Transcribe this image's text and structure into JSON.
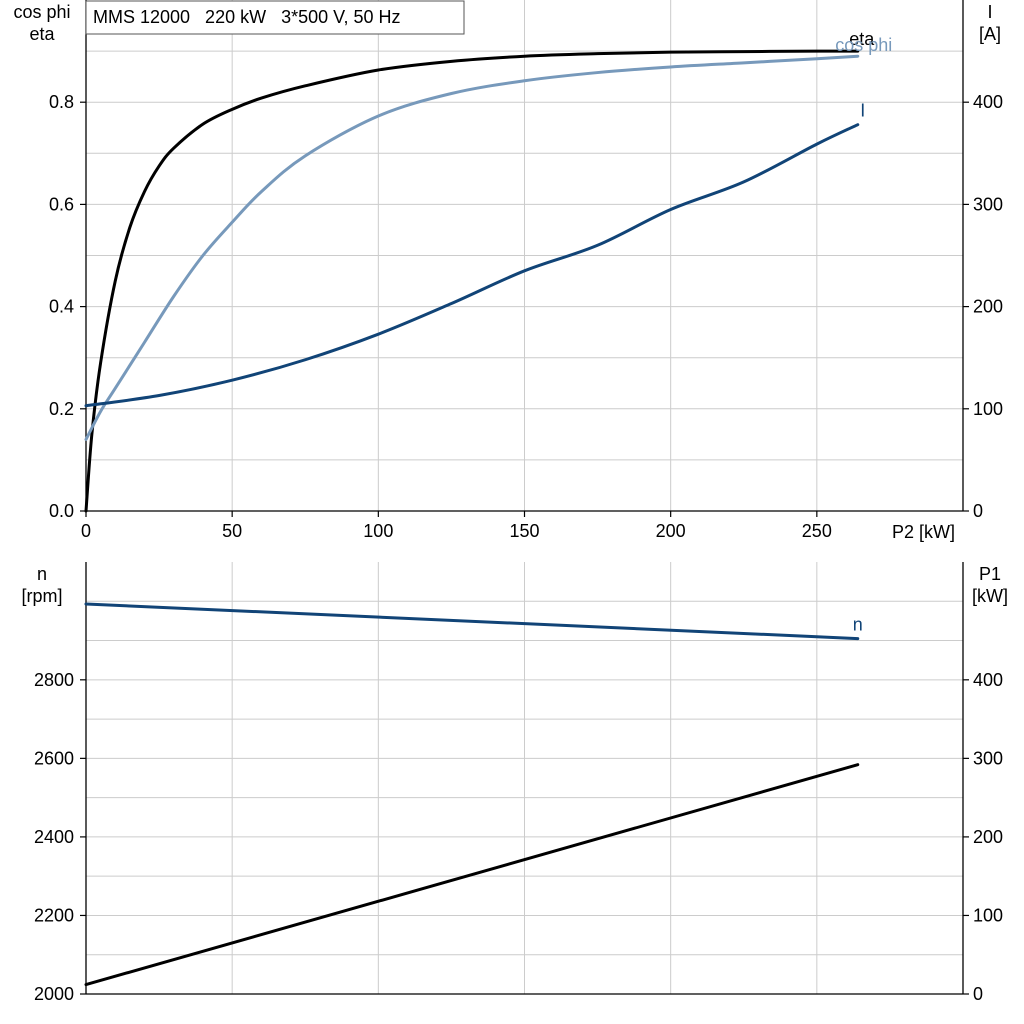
{
  "title": "MMS 12000   220 kW   3*500 V, 50 Hz",
  "colors": {
    "black": "#000000",
    "light_blue": "#7799bb",
    "dark_blue": "#114477",
    "grid": "#cccccc"
  },
  "chart_data": [
    {
      "type": "line",
      "xlabel": "P2 [kW]",
      "xlim": [
        0,
        300
      ],
      "xticks": [
        "0",
        "50",
        "100",
        "150",
        "200",
        "250"
      ],
      "ylabel_left": [
        "cos phi",
        "eta"
      ],
      "ylim_left": [
        0,
        1.0
      ],
      "yticks_left": [
        "0.0",
        "0.2",
        "0.4",
        "0.6",
        "0.8"
      ],
      "ylabel_right": [
        "I",
        "[A]"
      ],
      "ylim_right": [
        0,
        500
      ],
      "yticks_right": [
        "0",
        "100",
        "200",
        "300",
        "400"
      ],
      "grid": true,
      "series": [
        {
          "name": "eta",
          "axis": "left",
          "color": "#000000",
          "x": [
            0,
            2,
            5,
            10,
            15,
            20,
            25,
            30,
            40,
            50,
            60,
            75,
            100,
            125,
            150,
            175,
            200,
            225,
            250,
            264
          ],
          "y": [
            0.0,
            0.15,
            0.29,
            0.45,
            0.555,
            0.625,
            0.675,
            0.71,
            0.757,
            0.786,
            0.808,
            0.832,
            0.863,
            0.88,
            0.89,
            0.895,
            0.898,
            0.899,
            0.9,
            0.9
          ]
        },
        {
          "name": "cos phi",
          "axis": "left",
          "color": "#7799bb",
          "x": [
            0,
            5,
            10,
            20,
            30,
            40,
            50,
            60,
            75,
            100,
            125,
            150,
            175,
            200,
            225,
            250,
            264
          ],
          "y": [
            0.14,
            0.195,
            0.24,
            0.33,
            0.42,
            0.5,
            0.565,
            0.625,
            0.695,
            0.773,
            0.817,
            0.842,
            0.858,
            0.869,
            0.877,
            0.885,
            0.89
          ]
        },
        {
          "name": "I",
          "axis": "right",
          "color": "#114477",
          "x": [
            0,
            25,
            50,
            75,
            100,
            125,
            150,
            175,
            200,
            225,
            250,
            264
          ],
          "y": [
            103,
            113,
            128,
            148,
            173,
            203,
            235,
            260,
            295,
            322,
            359,
            378
          ]
        }
      ]
    },
    {
      "type": "line",
      "xlim": [
        0,
        300
      ],
      "ylabel_left": [
        "n",
        "[rpm]"
      ],
      "ylim_left": [
        2000,
        3100
      ],
      "yticks_left": [
        "2000",
        "2200",
        "2400",
        "2600",
        "2800"
      ],
      "ylabel_right": [
        "P1",
        "[kW]"
      ],
      "ylim_right": [
        0,
        550
      ],
      "yticks_right": [
        "0",
        "100",
        "200",
        "300",
        "400"
      ],
      "grid": true,
      "series": [
        {
          "name": "n",
          "axis": "left",
          "color": "#114477",
          "x": [
            0,
            264
          ],
          "y": [
            2993,
            2905
          ]
        },
        {
          "name": "",
          "axis": "right",
          "color": "#000000",
          "x": [
            0,
            264
          ],
          "y": [
            12,
            292
          ]
        }
      ]
    }
  ]
}
